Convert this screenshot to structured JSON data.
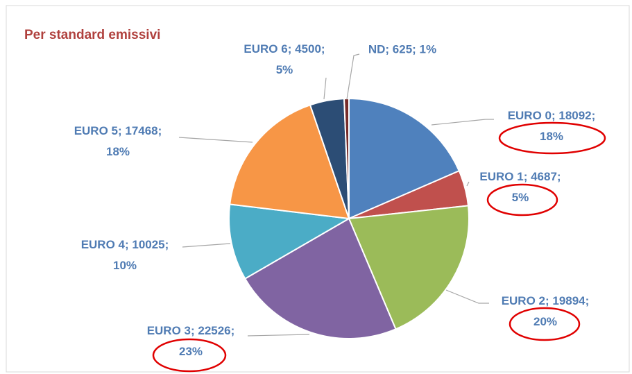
{
  "chart_data": {
    "type": "pie",
    "title": "Per standard emissivi",
    "values": [
      18092,
      4687,
      19894,
      22526,
      10025,
      17468,
      4500,
      625
    ],
    "value_labels": [
      "EURO 0; 18092; 18%",
      "EURO 1; 4687; 5%",
      "EURO 2; 19894; 20%",
      "EURO 3; 22526; 23%",
      "EURO 4; 10025; 10%",
      "EURO 5; 17468; 18%",
      "EURO 6; 4500; 5%",
      "ND; 625; 1%"
    ],
    "colors": [
      "#4f81bd",
      "#c0504d",
      "#9bbb59",
      "#8064a2",
      "#4bacc6",
      "#f79646",
      "#2c4d75",
      "#772c2a"
    ]
  }
}
